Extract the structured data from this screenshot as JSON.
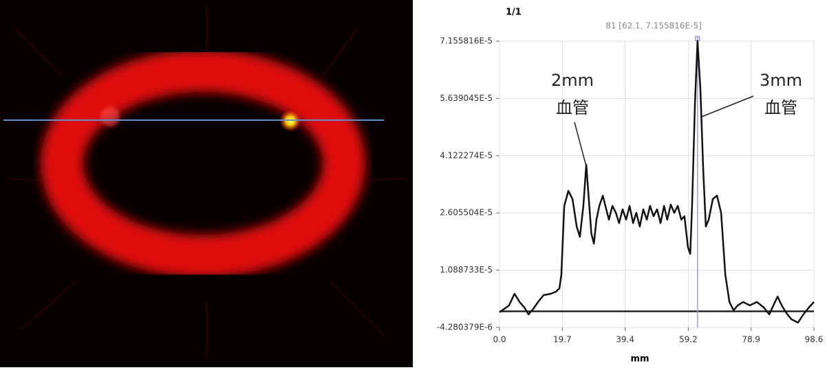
{
  "chart_data": {
    "type": "line",
    "title": "1/1",
    "cursor": {
      "label": "81 [62.1, 7.155816E-5]",
      "x": 62.1,
      "y": 7.155816e-05
    },
    "xlabel": "mm",
    "xlim": [
      0,
      98.6
    ],
    "xticks": [
      {
        "value": 0,
        "label": "0.0"
      },
      19.7,
      39.4,
      59.2,
      78.9,
      98.6
    ],
    "ylim": [
      -4.280379e-06,
      7.155816e-05
    ],
    "yticks": [
      {
        "value": -4.280379e-06,
        "label": "-4.280379E-6"
      },
      {
        "value": 1.088733e-05,
        "label": "1.088733E-5"
      },
      {
        "value": 2.605504e-05,
        "label": "2.605504E-5"
      },
      {
        "value": 4.122274e-05,
        "label": "4.122274E-5"
      },
      {
        "value": 5.639045e-05,
        "label": "5.639045E-5"
      },
      {
        "value": 7.155816e-05,
        "label": "7.155816E-5"
      }
    ],
    "grid": true,
    "annotations": [
      {
        "lines": [
          "2mm",
          "血管"
        ]
      },
      {
        "lines": [
          "3mm",
          "血管"
        ]
      }
    ],
    "x": [
      0.0,
      3.0,
      4.7,
      6.3,
      7.8,
      9.1,
      10.6,
      12.1,
      13.8,
      16.0,
      17.7,
      18.8,
      19.4,
      20.3,
      21.6,
      22.9,
      24.2,
      25.2,
      26.3,
      27.2,
      28.0,
      28.8,
      29.6,
      30.4,
      31.3,
      32.4,
      33.2,
      34.3,
      35.4,
      36.5,
      37.5,
      38.6,
      39.7,
      40.8,
      41.9,
      42.9,
      44.0,
      45.1,
      46.2,
      47.2,
      48.3,
      49.4,
      50.5,
      51.6,
      52.6,
      53.7,
      54.8,
      55.9,
      57.0,
      58.0,
      59.1,
      59.8,
      60.4,
      61.3,
      62.1,
      63.0,
      63.9,
      64.7,
      65.6,
      66.9,
      68.2,
      69.5,
      70.8,
      72.1,
      73.4,
      74.7,
      76.4,
      78.5,
      80.7,
      82.9,
      84.6,
      85.9,
      87.2,
      88.5,
      89.8,
      91.5,
      93.6,
      95.3,
      97.0,
      98.6
    ],
    "series": [
      {
        "color": "#111111",
        "values": [
          -2.7e-07,
          1.55e-06,
          4.64e-06,
          2.46e-06,
          1e-06,
          -8.2e-07,
          6.4e-07,
          2.46e-06,
          4.27e-06,
          4.64e-06,
          5.18e-06,
          6.09e-06,
          9.73e-06,
          2.792e-05,
          3.192e-05,
          2.974e-05,
          2.246e-05,
          1.973e-05,
          2.792e-05,
          3.883e-05,
          2.974e-05,
          2.064e-05,
          1.791e-05,
          2.428e-05,
          2.792e-05,
          3.064e-05,
          2.792e-05,
          2.428e-05,
          2.792e-05,
          2.61e-05,
          2.337e-05,
          2.701e-05,
          2.428e-05,
          2.792e-05,
          2.337e-05,
          2.61e-05,
          2.246e-05,
          2.701e-05,
          2.428e-05,
          2.792e-05,
          2.519e-05,
          2.701e-05,
          2.337e-05,
          2.792e-05,
          2.428e-05,
          2.828e-05,
          2.61e-05,
          2.792e-05,
          2.428e-05,
          2.519e-05,
          1.7e-05,
          1.519e-05,
          2.792e-05,
          5.52e-05,
          7.155816e-05,
          5.883e-05,
          3.701e-05,
          2.246e-05,
          2.428e-05,
          2.974e-05,
          3.064e-05,
          2.61e-05,
          9.73e-06,
          2.46e-06,
          2.7e-07,
          1.55e-06,
          2.46e-06,
          1.55e-06,
          2.46e-06,
          1e-06,
          -8.2e-07,
          1.55e-06,
          3.91e-06,
          1.55e-06,
          -2.7e-07,
          -2.09e-06,
          -3e-06,
          -8.2e-07,
          1e-06,
          2.46e-06
        ]
      }
    ]
  }
}
